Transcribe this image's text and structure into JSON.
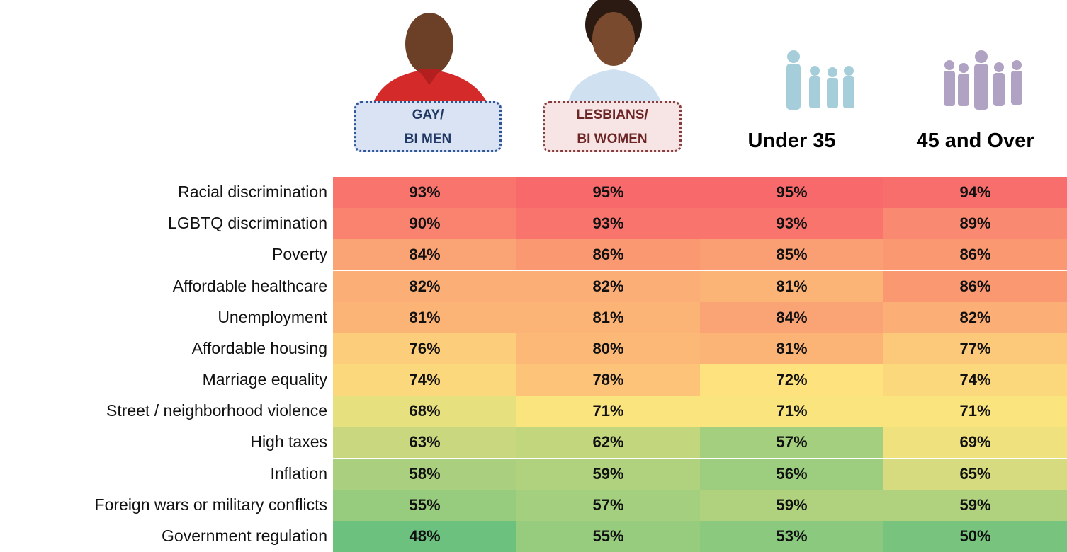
{
  "chart_data": {
    "type": "heatmap",
    "x": [
      "GAY/\nBI MEN",
      "LESBIANS/\nBI WOMEN",
      "Under 35",
      "45 and Over"
    ],
    "categories": [
      "Racial discrimination",
      "LGBTQ discrimination",
      "Poverty",
      "Affordable healthcare",
      "Unemployment",
      "Affordable housing",
      "Marriage equality",
      "Street / neighborhood violence",
      "High taxes",
      "Inflation",
      "Foreign wars or military conflicts",
      "Government regulation"
    ],
    "values": [
      [
        93,
        95,
        95,
        94
      ],
      [
        90,
        93,
        93,
        89
      ],
      [
        84,
        86,
        85,
        86
      ],
      [
        82,
        82,
        81,
        86
      ],
      [
        81,
        81,
        84,
        82
      ],
      [
        76,
        80,
        81,
        77
      ],
      [
        74,
        78,
        72,
        74
      ],
      [
        68,
        71,
        71,
        71
      ],
      [
        63,
        62,
        57,
        69
      ],
      [
        58,
        59,
        56,
        65
      ],
      [
        55,
        57,
        59,
        59
      ],
      [
        48,
        55,
        53,
        50
      ]
    ],
    "value_labels": [
      [
        "93%",
        "95%",
        "95%",
        "94%"
      ],
      [
        "90%",
        "93%",
        "93%",
        "89%"
      ],
      [
        "84%",
        "86%",
        "85%",
        "86%"
      ],
      [
        "82%",
        "82%",
        "81%",
        "86%"
      ],
      [
        "81%",
        "81%",
        "84%",
        "82%"
      ],
      [
        "76%",
        "80%",
        "81%",
        "77%"
      ],
      [
        "74%",
        "78%",
        "72%",
        "74%"
      ],
      [
        "68%",
        "71%",
        "71%",
        "71%"
      ],
      [
        "63%",
        "62%",
        "57%",
        "69%"
      ],
      [
        "58%",
        "59%",
        "56%",
        "65%"
      ],
      [
        "55%",
        "57%",
        "59%",
        "59%"
      ],
      [
        "48%",
        "55%",
        "53%",
        "50%"
      ]
    ],
    "color_scale": [
      "#6cc17f",
      "#fde57e",
      "#f8696b"
    ]
  }
}
